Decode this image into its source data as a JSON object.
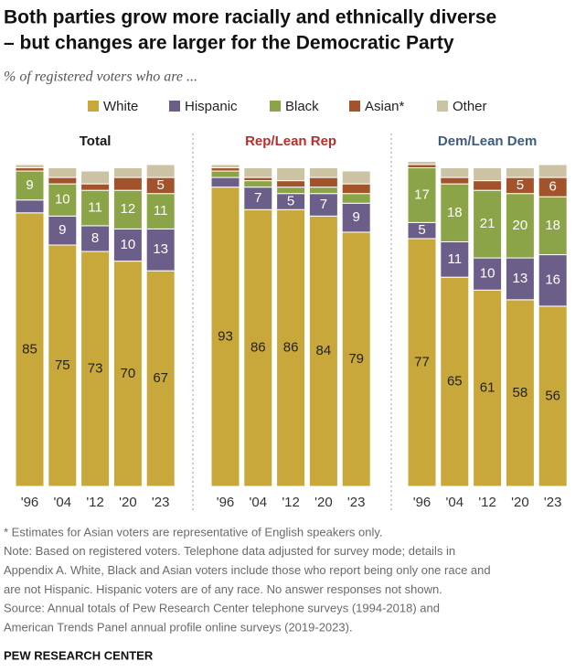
{
  "title": [
    "Both parties grow more racially and ethnically diverse",
    "– but changes are larger for the Democratic Party"
  ],
  "subtitle": "% of registered voters who are ...",
  "chart_data": [
    {
      "type": "stacked-bar",
      "title": "Total",
      "title_color": "#1a1a1a",
      "categories": [
        "'96",
        "'04",
        "'12",
        "'20",
        "'23"
      ],
      "ylim": [
        0,
        100
      ],
      "label_min": 5,
      "series": [
        {
          "name": "White",
          "color": "#c9a83b",
          "text_color": "#222222",
          "values": [
            85,
            75,
            73,
            70,
            67
          ]
        },
        {
          "name": "Hispanic",
          "color": "#6b5f8a",
          "text_color": "#ffffff",
          "values": [
            4,
            9,
            8,
            10,
            13
          ]
        },
        {
          "name": "Black",
          "color": "#8aa447",
          "text_color": "#ffffff",
          "values": [
            9,
            10,
            11,
            12,
            11
          ]
        },
        {
          "name": "Asian*",
          "color": "#a3532b",
          "text_color": "#ffffff",
          "values": [
            1,
            2,
            2,
            4,
            5
          ]
        },
        {
          "name": "Other",
          "color": "#cbc3a3",
          "text_color": "#222222",
          "values": [
            1,
            3,
            4,
            3,
            4
          ]
        }
      ]
    },
    {
      "type": "stacked-bar",
      "title": "Rep/Lean Rep",
      "title_color": "#b5302c",
      "categories": [
        "'96",
        "'04",
        "'12",
        "'20",
        "'23"
      ],
      "ylim": [
        0,
        100
      ],
      "label_min": 5,
      "series": [
        {
          "name": "White",
          "color": "#c9a83b",
          "text_color": "#222222",
          "values": [
            93,
            86,
            86,
            84,
            79
          ]
        },
        {
          "name": "Hispanic",
          "color": "#6b5f8a",
          "text_color": "#ffffff",
          "values": [
            3,
            7,
            5,
            7,
            9
          ]
        },
        {
          "name": "Black",
          "color": "#8aa447",
          "text_color": "#ffffff",
          "values": [
            2,
            2,
            2,
            2,
            3
          ]
        },
        {
          "name": "Asian*",
          "color": "#a3532b",
          "text_color": "#ffffff",
          "values": [
            1,
            1,
            2,
            3,
            3
          ]
        },
        {
          "name": "Other",
          "color": "#cbc3a3",
          "text_color": "#222222",
          "values": [
            1,
            3,
            4,
            3,
            4
          ]
        }
      ]
    },
    {
      "type": "stacked-bar",
      "title": "Dem/Lean Dem",
      "title_color": "#3f5b7c",
      "categories": [
        "'96",
        "'04",
        "'12",
        "'20",
        "'23"
      ],
      "ylim": [
        0,
        100
      ],
      "label_min": 5,
      "series": [
        {
          "name": "White",
          "color": "#c9a83b",
          "text_color": "#222222",
          "values": [
            77,
            65,
            61,
            58,
            56
          ]
        },
        {
          "name": "Hispanic",
          "color": "#6b5f8a",
          "text_color": "#ffffff",
          "values": [
            5,
            11,
            10,
            13,
            16
          ]
        },
        {
          "name": "Black",
          "color": "#8aa447",
          "text_color": "#ffffff",
          "values": [
            17,
            18,
            21,
            20,
            18
          ]
        },
        {
          "name": "Asian*",
          "color": "#a3532b",
          "text_color": "#ffffff",
          "values": [
            1,
            2,
            3,
            5,
            6
          ]
        },
        {
          "name": "Other",
          "color": "#cbc3a3",
          "text_color": "#222222",
          "values": [
            1,
            3,
            4,
            3,
            4
          ]
        }
      ]
    }
  ],
  "notes": [
    "* Estimates for Asian voters are representative of English speakers only.",
    "Note: Based on registered voters. Telephone data adjusted for survey mode; details in",
    "Appendix A. White, Black and Asian voters include those who report being only one race and",
    "are not Hispanic. Hispanic voters are of any race. No answer responses not shown.",
    "Source: Annual totals of Pew Research Center telephone surveys (1994-2018) and",
    "American Trends Panel annual profile online surveys (2019-2023)."
  ],
  "source_label": "PEW RESEARCH CENTER"
}
